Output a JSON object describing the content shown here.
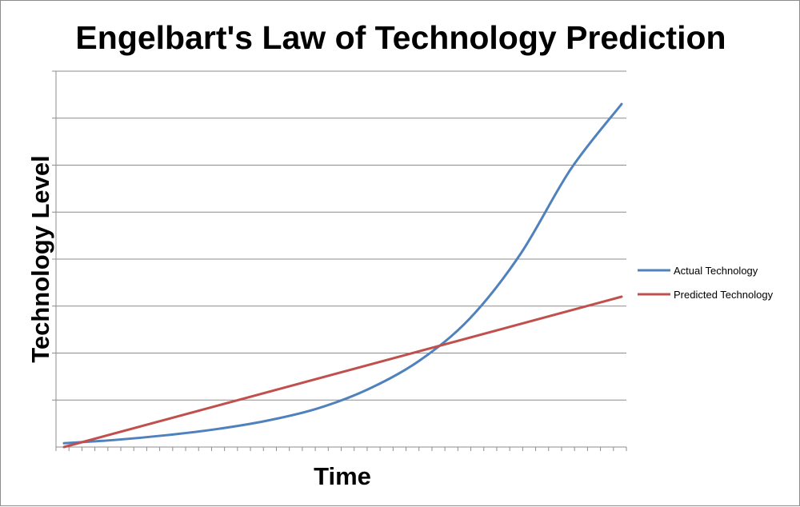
{
  "chart_data": {
    "type": "line",
    "title": "Engelbart's Law of Technology Prediction",
    "xlabel": "Time",
    "ylabel": "Technology Level",
    "x_tick_count": 45,
    "y_gridlines": 8,
    "grid": true,
    "ylim": [
      0,
      8
    ],
    "legend_position": "right",
    "series": [
      {
        "name": "Actual Technology",
        "color": "#4f81bd",
        "x": [
          0,
          4,
          8,
          12,
          16,
          20,
          24,
          28,
          32,
          36,
          40,
          44
        ],
        "values": [
          0.08,
          0.15,
          0.25,
          0.38,
          0.56,
          0.82,
          1.23,
          1.83,
          2.73,
          4.1,
          5.92,
          7.3
        ]
      },
      {
        "name": "Predicted Technology",
        "color": "#c0504d",
        "x": [
          0,
          44
        ],
        "values": [
          0,
          3.2
        ]
      }
    ]
  }
}
